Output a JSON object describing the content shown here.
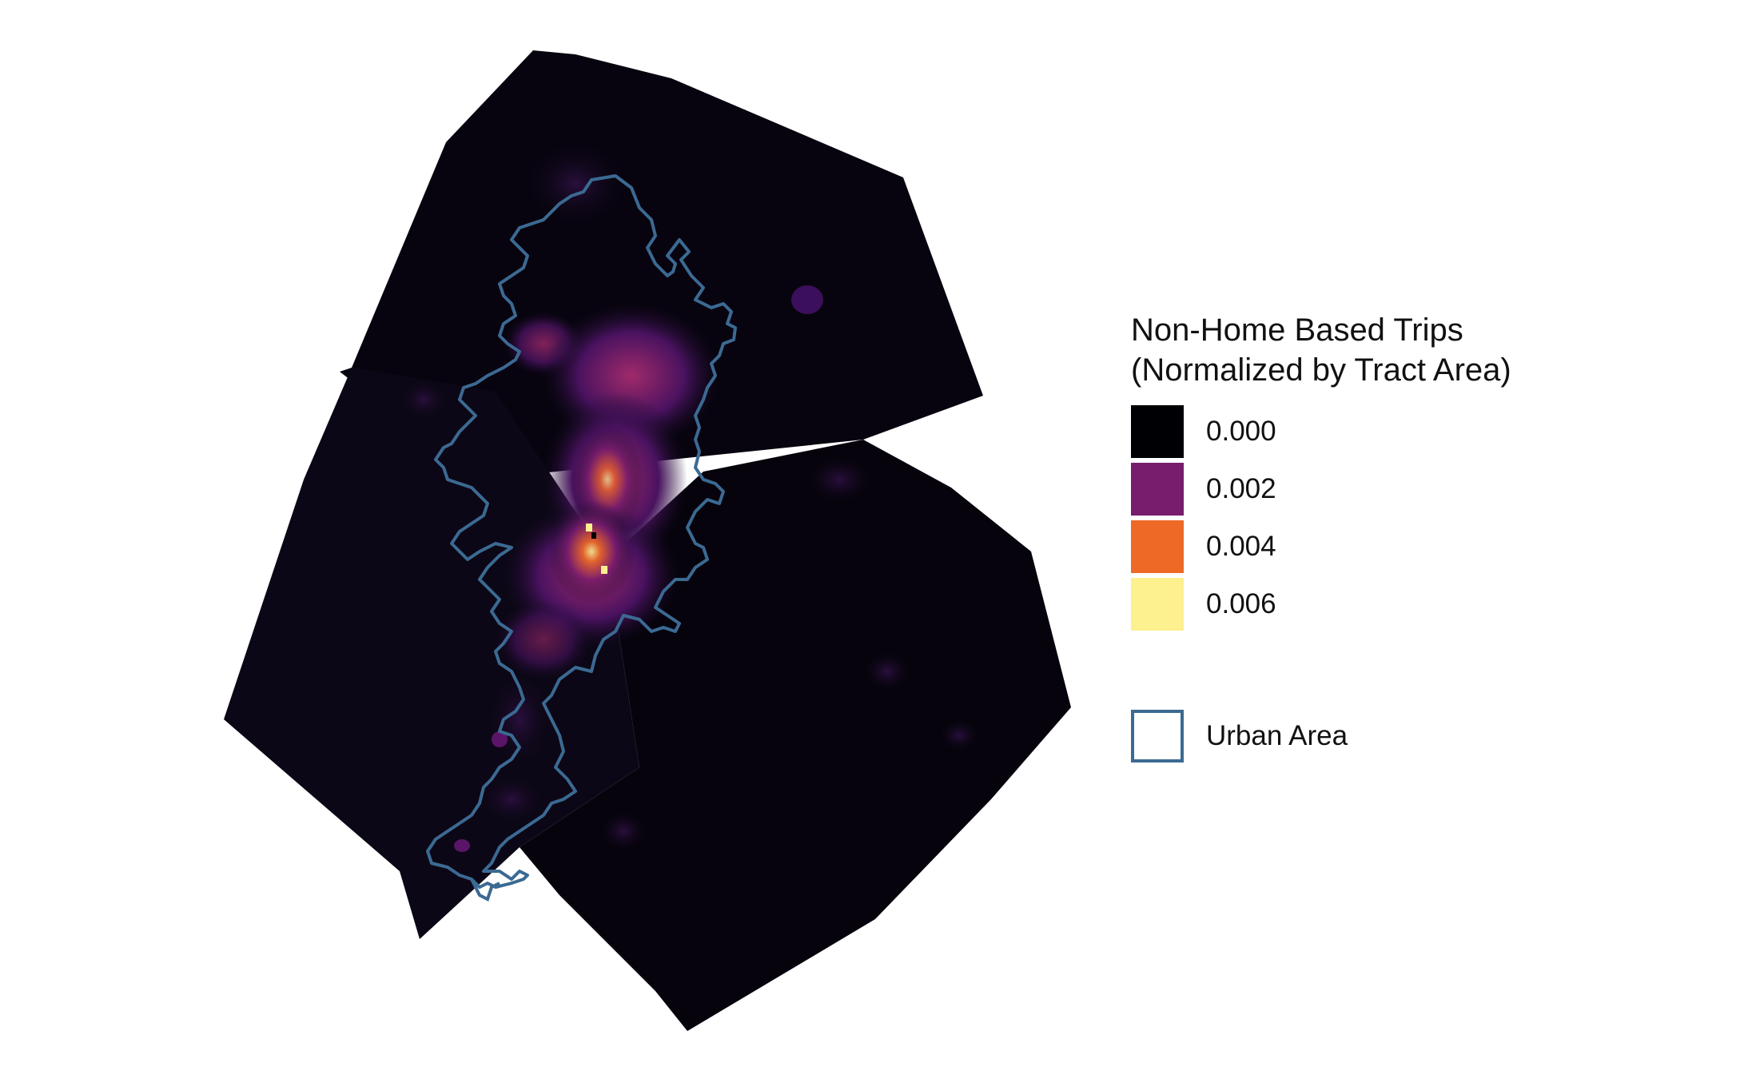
{
  "legend": {
    "title_line1": "Non-Home Based Trips",
    "title_line2": "(Normalized by Tract Area)",
    "items": [
      {
        "label": "0.000",
        "color": "#000004"
      },
      {
        "label": "0.002",
        "color": "#781c6d"
      },
      {
        "label": "0.004",
        "color": "#ed6925"
      },
      {
        "label": "0.006",
        "color": "#fcf08f"
      }
    ],
    "urban_area_label": "Urban Area",
    "urban_area_color": "#3b6a93"
  },
  "map": {
    "background_color": "#0a0612",
    "colorscale": "inferno",
    "range": [
      0.0,
      0.006
    ]
  }
}
